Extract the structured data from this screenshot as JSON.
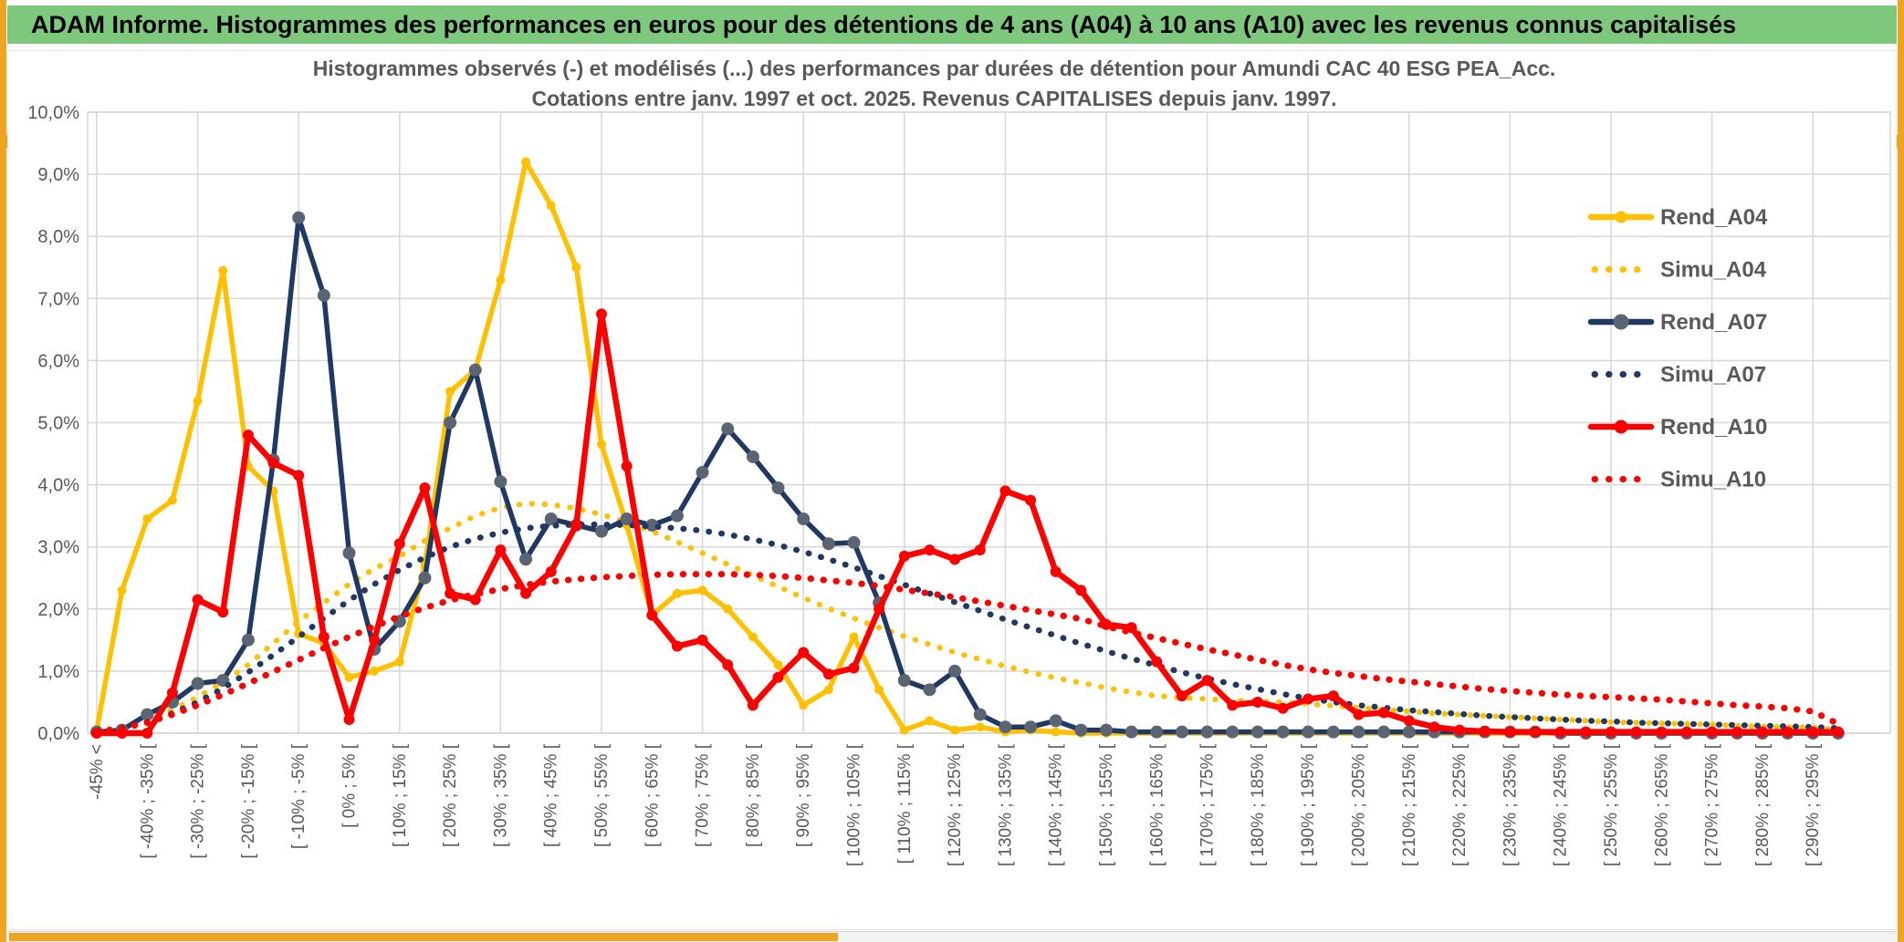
{
  "header": {
    "title": "ADAM Informe. Histogrammes des performances en euros pour des détentions de 4 ans (A04) à 10 ans (A10) avec les revenus connus capitalisés"
  },
  "colors": {
    "header_green": "#7EC87E",
    "frame_gold": "#EEA41F",
    "grid": "#D9D9D9",
    "axis_text": "#595959",
    "title_text": "#595959",
    "gold_series": "#FFC000",
    "navy_series": "#1F3864",
    "navy_marker": "#5B6472",
    "red_series": "#FF0000"
  },
  "chart_data": {
    "type": "line",
    "title_line1": "Histogrammes observés (-) et modélisés (...) des performances par durées de détention pour Amundi CAC 40 ESG PEA_Acc.",
    "title_line2": "Cotations entre janv. 1997 et oct. 2025. Revenus CAPITALISES depuis janv. 1997.",
    "grid": true,
    "legend_position": "right-inside",
    "ylim": [
      0,
      10
    ],
    "ytick_labels": [
      "0,0%",
      "1,0%",
      "2,0%",
      "3,0%",
      "4,0%",
      "5,0%",
      "6,0%",
      "7,0%",
      "8,0%",
      "9,0%",
      "10,0%"
    ],
    "n_bins": 70,
    "bin_width_pct": 5,
    "x_tick_every": 2,
    "x_tick_labels": [
      "-45% <",
      "[ -40% ; -35% [",
      "[ -30% ; -25% [",
      "[ -20% ; -15% [",
      "[ -10% ; -5% [",
      "[ 0% ; 5% [",
      "[ 10% ; 15% [",
      "[ 20% ; 25% [",
      "[ 30% ; 35% [",
      "[ 40% ; 45% [",
      "[ 50% ; 55% [",
      "[ 60% ; 65% [",
      "[ 70% ; 75% [",
      "[ 80% ; 85% [",
      "[ 90% ; 95% [",
      "[ 100% ; 105% [",
      "[ 110% ; 115% [",
      "[ 120% ; 125% [",
      "[ 130% ; 135% [",
      "[ 140% ; 145% [",
      "[ 150% ; 155% [",
      "[ 160% ; 165% [",
      "[ 170% ; 175% [",
      "[ 180% ; 185% [",
      "[ 190% ; 195% [",
      "[ 200% ; 205% [",
      "[ 210% ; 215% [",
      "[ 220% ; 225% [",
      "[ 230% ; 235% [",
      "[ 240% ; 245% [",
      "[ 250% ; 255% [",
      "[ 260% ; 265% [",
      "[ 270% ; 275% [",
      "[ 280% ; 285% [",
      "[ 290% ; 295% ["
    ],
    "series": [
      {
        "name": "Rend_A04",
        "style": "solid",
        "color": "#FFC000",
        "marker_color": "#FFC000",
        "marker_r": 5,
        "width": 5.5,
        "values": [
          0.05,
          2.3,
          3.45,
          3.75,
          5.35,
          7.45,
          4.3,
          3.9,
          1.6,
          1.45,
          0.9,
          1.0,
          1.15,
          2.7,
          5.5,
          5.85,
          7.3,
          9.2,
          8.5,
          7.5,
          4.65,
          3.35,
          1.9,
          2.25,
          2.3,
          2.0,
          1.55,
          1.1,
          0.45,
          0.7,
          1.55,
          0.7,
          0.05,
          0.2,
          0.05,
          0.1,
          0.02,
          0.05,
          0.02,
          0,
          0,
          0,
          0,
          0,
          0,
          0,
          0,
          0,
          0,
          0,
          0,
          0,
          0,
          0,
          0,
          0,
          0,
          0,
          0,
          0,
          0,
          0,
          0,
          0,
          0,
          0,
          0,
          0,
          0,
          0
        ]
      },
      {
        "name": "Simu_A04",
        "style": "dotted",
        "color": "#FFC000",
        "width": 6,
        "values": [
          0.03,
          0.1,
          0.22,
          0.38,
          0.58,
          0.82,
          1.1,
          1.45,
          1.8,
          2.1,
          2.4,
          2.65,
          2.85,
          3.1,
          3.3,
          3.5,
          3.63,
          3.7,
          3.68,
          3.62,
          3.52,
          3.4,
          3.25,
          3.08,
          2.9,
          2.72,
          2.54,
          2.36,
          2.18,
          2.01,
          1.85,
          1.7,
          1.56,
          1.43,
          1.3,
          1.19,
          1.08,
          0.98,
          0.89,
          0.81,
          0.73,
          0.66,
          0.6,
          0.57,
          0.55,
          0.53,
          0.51,
          0.5,
          0.47,
          0.44,
          0.41,
          0.38,
          0.35,
          0.32,
          0.3,
          0.28,
          0.26,
          0.24,
          0.22,
          0.2,
          0.18,
          0.17,
          0.16,
          0.15,
          0.14,
          0.12,
          0.11,
          0.1,
          0.09,
          0.06
        ]
      },
      {
        "name": "Rend_A07",
        "style": "solid",
        "color": "#1F3864",
        "marker_color": "#5B6472",
        "marker_r": 7,
        "width": 5.5,
        "values": [
          0.02,
          0.05,
          0.3,
          0.5,
          0.8,
          0.85,
          1.5,
          4.4,
          8.3,
          7.05,
          2.9,
          1.35,
          1.8,
          2.5,
          5.0,
          5.85,
          4.05,
          2.8,
          3.45,
          3.35,
          3.25,
          3.45,
          3.35,
          3.5,
          4.2,
          4.9,
          4.45,
          3.95,
          3.45,
          3.05,
          3.07,
          2.1,
          0.85,
          0.7,
          1.0,
          0.3,
          0.1,
          0.1,
          0.2,
          0.05,
          0.05,
          0.02,
          0.02,
          0.02,
          0.02,
          0.02,
          0.02,
          0.02,
          0.02,
          0.02,
          0.02,
          0.02,
          0.02,
          0.02,
          0.02,
          0.02,
          0.02,
          0.02,
          0,
          0,
          0,
          0,
          0,
          0,
          0,
          0,
          0,
          0,
          0,
          0
        ]
      },
      {
        "name": "Simu_A07",
        "style": "dotted",
        "color": "#1F3864",
        "width": 6.5,
        "values": [
          0.02,
          0.08,
          0.18,
          0.32,
          0.5,
          0.72,
          0.98,
          1.26,
          1.55,
          1.85,
          2.14,
          2.4,
          2.63,
          2.83,
          3.0,
          3.13,
          3.23,
          3.3,
          3.34,
          3.36,
          3.36,
          3.35,
          3.33,
          3.3,
          3.26,
          3.2,
          3.12,
          3.03,
          2.92,
          2.8,
          2.67,
          2.53,
          2.39,
          2.25,
          2.11,
          1.97,
          1.83,
          1.7,
          1.57,
          1.44,
          1.32,
          1.2,
          1.09,
          0.98,
          0.88,
          0.79,
          0.71,
          0.63,
          0.56,
          0.5,
          0.45,
          0.41,
          0.37,
          0.34,
          0.31,
          0.28,
          0.26,
          0.24,
          0.22,
          0.2,
          0.19,
          0.17,
          0.16,
          0.15,
          0.14,
          0.13,
          0.12,
          0.11,
          0.1,
          0.08
        ]
      },
      {
        "name": "Rend_A10",
        "style": "solid",
        "color": "#FF0000",
        "marker_color": "#FF0000",
        "marker_r": 6,
        "width": 6.5,
        "values": [
          0,
          0,
          0,
          0.65,
          2.15,
          1.95,
          4.8,
          4.35,
          4.15,
          1.55,
          0.22,
          1.5,
          3.05,
          3.95,
          2.25,
          2.15,
          2.95,
          2.25,
          2.6,
          3.35,
          6.75,
          4.3,
          1.9,
          1.4,
          1.5,
          1.1,
          0.45,
          0.9,
          1.3,
          0.95,
          1.05,
          2.0,
          2.85,
          2.95,
          2.8,
          2.95,
          3.9,
          3.75,
          2.6,
          2.3,
          1.75,
          1.7,
          1.15,
          0.6,
          0.85,
          0.45,
          0.5,
          0.4,
          0.55,
          0.6,
          0.3,
          0.33,
          0.2,
          0.1,
          0.05,
          0.03,
          0.02,
          0.02,
          0.02,
          0.02,
          0.02,
          0.02,
          0.02,
          0.02,
          0.02,
          0.02,
          0.02,
          0.02,
          0.02,
          0.02
        ]
      },
      {
        "name": "Simu_A10",
        "style": "dotted",
        "color": "#FF0000",
        "width": 7,
        "values": [
          0.02,
          0.08,
          0.17,
          0.3,
          0.45,
          0.62,
          0.8,
          0.99,
          1.18,
          1.37,
          1.55,
          1.72,
          1.88,
          2.02,
          2.14,
          2.24,
          2.32,
          2.39,
          2.44,
          2.48,
          2.51,
          2.53,
          2.55,
          2.56,
          2.56,
          2.56,
          2.55,
          2.53,
          2.5,
          2.46,
          2.42,
          2.37,
          2.31,
          2.25,
          2.19,
          2.12,
          2.05,
          1.98,
          1.91,
          1.84,
          1.72,
          1.62,
          1.53,
          1.44,
          1.35,
          1.27,
          1.18,
          1.1,
          1.03,
          0.97,
          0.92,
          0.87,
          0.83,
          0.79,
          0.75,
          0.71,
          0.68,
          0.65,
          0.62,
          0.6,
          0.58,
          0.56,
          0.54,
          0.51,
          0.48,
          0.45,
          0.43,
          0.4,
          0.35,
          0.15
        ]
      }
    ]
  }
}
